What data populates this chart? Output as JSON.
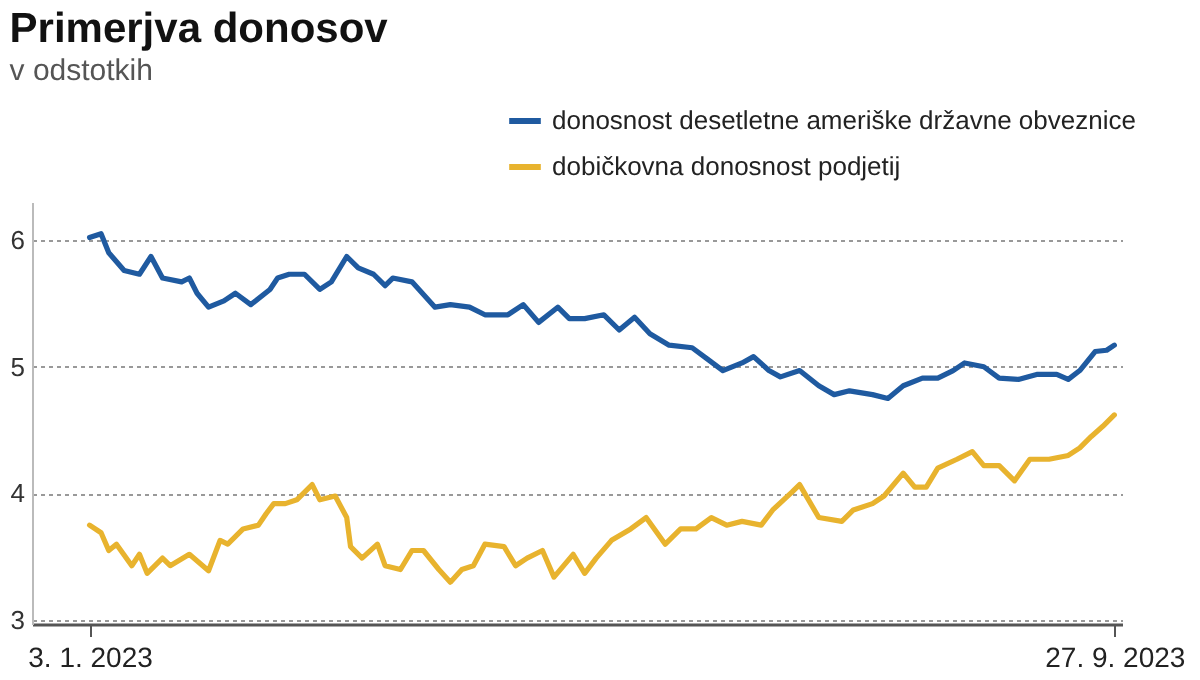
{
  "chart_data": {
    "type": "line",
    "title": "Primerjva donosov",
    "subtitle": "v odstotkih",
    "xlim": [
      "2022-12-19",
      "2023-09-29"
    ],
    "xticks": [
      {
        "value": "2023-01-03",
        "label": "3. 1. 2023"
      },
      {
        "value": "2023-09-27",
        "label": "27. 9. 2023"
      }
    ],
    "ylim": [
      2.97,
      6.3
    ],
    "yticks": [
      3,
      4,
      5,
      6
    ],
    "grid": "y",
    "legend": "top right",
    "marker": "none",
    "line_style": "solid",
    "series": [
      {
        "name": "donosnost desetletne ameriške državne obveznice",
        "color": "#1f5aa0",
        "x": [
          "2023-01-03",
          "2023-01-06",
          "2023-01-08",
          "2023-01-12",
          "2023-01-16",
          "2023-01-19",
          "2023-01-22",
          "2023-01-27",
          "2023-01-29",
          "2023-01-31",
          "2023-02-03",
          "2023-02-07",
          "2023-02-10",
          "2023-02-14",
          "2023-02-19",
          "2023-02-21",
          "2023-02-24",
          "2023-02-28",
          "2023-03-04",
          "2023-03-07",
          "2023-03-11",
          "2023-03-14",
          "2023-03-18",
          "2023-03-21",
          "2023-03-23",
          "2023-03-28",
          "2023-04-03",
          "2023-04-07",
          "2023-04-12",
          "2023-04-16",
          "2023-04-22",
          "2023-04-26",
          "2023-04-30",
          "2023-05-05",
          "2023-05-08",
          "2023-05-12",
          "2023-05-17",
          "2023-05-21",
          "2023-05-25",
          "2023-05-29",
          "2023-06-03",
          "2023-06-09",
          "2023-06-13",
          "2023-06-17",
          "2023-06-22",
          "2023-06-25",
          "2023-06-29",
          "2023-07-02",
          "2023-07-07",
          "2023-07-12",
          "2023-07-16",
          "2023-07-20",
          "2023-07-26",
          "2023-07-30",
          "2023-08-03",
          "2023-08-08",
          "2023-08-12",
          "2023-08-16",
          "2023-08-19",
          "2023-08-24",
          "2023-08-28",
          "2023-09-02",
          "2023-09-07",
          "2023-09-12",
          "2023-09-15",
          "2023-09-18",
          "2023-09-22",
          "2023-09-25",
          "2023-09-27"
        ],
        "values": [
          6.02,
          6.05,
          5.9,
          5.76,
          5.73,
          5.87,
          5.7,
          5.67,
          5.7,
          5.58,
          5.47,
          5.52,
          5.58,
          5.49,
          5.61,
          5.7,
          5.73,
          5.73,
          5.61,
          5.67,
          5.87,
          5.78,
          5.73,
          5.64,
          5.7,
          5.67,
          5.47,
          5.49,
          5.47,
          5.41,
          5.41,
          5.49,
          5.35,
          5.47,
          5.38,
          5.38,
          5.41,
          5.29,
          5.39,
          5.26,
          5.17,
          5.15,
          5.06,
          4.97,
          5.03,
          5.08,
          4.97,
          4.92,
          4.97,
          4.85,
          4.78,
          4.81,
          4.78,
          4.75,
          4.85,
          4.91,
          4.91,
          4.97,
          5.03,
          5.0,
          4.91,
          4.9,
          4.94,
          4.94,
          4.9,
          4.97,
          5.12,
          5.13,
          5.17
        ]
      },
      {
        "name": "dobičkovna donosnost podjetij",
        "color": "#e8b32e",
        "x": [
          "2023-01-03",
          "2023-01-06",
          "2023-01-08",
          "2023-01-10",
          "2023-01-14",
          "2023-01-16",
          "2023-01-18",
          "2023-01-22",
          "2023-01-24",
          "2023-01-29",
          "2023-02-03",
          "2023-02-06",
          "2023-02-08",
          "2023-02-12",
          "2023-02-16",
          "2023-02-18",
          "2023-02-20",
          "2023-02-23",
          "2023-02-26",
          "2023-03-02",
          "2023-03-04",
          "2023-03-08",
          "2023-03-11",
          "2023-03-12",
          "2023-03-15",
          "2023-03-19",
          "2023-03-21",
          "2023-03-25",
          "2023-03-28",
          "2023-03-31",
          "2023-04-04",
          "2023-04-07",
          "2023-04-10",
          "2023-04-13",
          "2023-04-16",
          "2023-04-21",
          "2023-04-24",
          "2023-04-27",
          "2023-05-01",
          "2023-05-04",
          "2023-05-09",
          "2023-05-12",
          "2023-05-15",
          "2023-05-19",
          "2023-05-24",
          "2023-05-28",
          "2023-06-02",
          "2023-06-06",
          "2023-06-10",
          "2023-06-14",
          "2023-06-18",
          "2023-06-22",
          "2023-06-27",
          "2023-06-30",
          "2023-07-05",
          "2023-07-07",
          "2023-07-12",
          "2023-07-18",
          "2023-07-21",
          "2023-07-26",
          "2023-07-29",
          "2023-08-03",
          "2023-08-06",
          "2023-08-09",
          "2023-08-12",
          "2023-08-17",
          "2023-08-21",
          "2023-08-24",
          "2023-08-28",
          "2023-09-01",
          "2023-09-05",
          "2023-09-10",
          "2023-09-15",
          "2023-09-18",
          "2023-09-21",
          "2023-09-24",
          "2023-09-27"
        ],
        "values": [
          3.75,
          3.69,
          3.55,
          3.6,
          3.43,
          3.52,
          3.37,
          3.49,
          3.43,
          3.52,
          3.39,
          3.63,
          3.6,
          3.72,
          3.75,
          3.84,
          3.92,
          3.92,
          3.95,
          4.07,
          3.95,
          3.98,
          3.81,
          3.58,
          3.49,
          3.6,
          3.43,
          3.4,
          3.55,
          3.55,
          3.4,
          3.3,
          3.4,
          3.43,
          3.6,
          3.58,
          3.43,
          3.49,
          3.55,
          3.34,
          3.52,
          3.37,
          3.49,
          3.63,
          3.72,
          3.81,
          3.6,
          3.72,
          3.72,
          3.81,
          3.75,
          3.78,
          3.75,
          3.87,
          4.01,
          4.07,
          3.81,
          3.78,
          3.87,
          3.92,
          3.98,
          4.16,
          4.05,
          4.05,
          4.2,
          4.27,
          4.33,
          4.22,
          4.22,
          4.1,
          4.27,
          4.27,
          4.3,
          4.36,
          4.45,
          4.53,
          4.62
        ]
      }
    ]
  }
}
